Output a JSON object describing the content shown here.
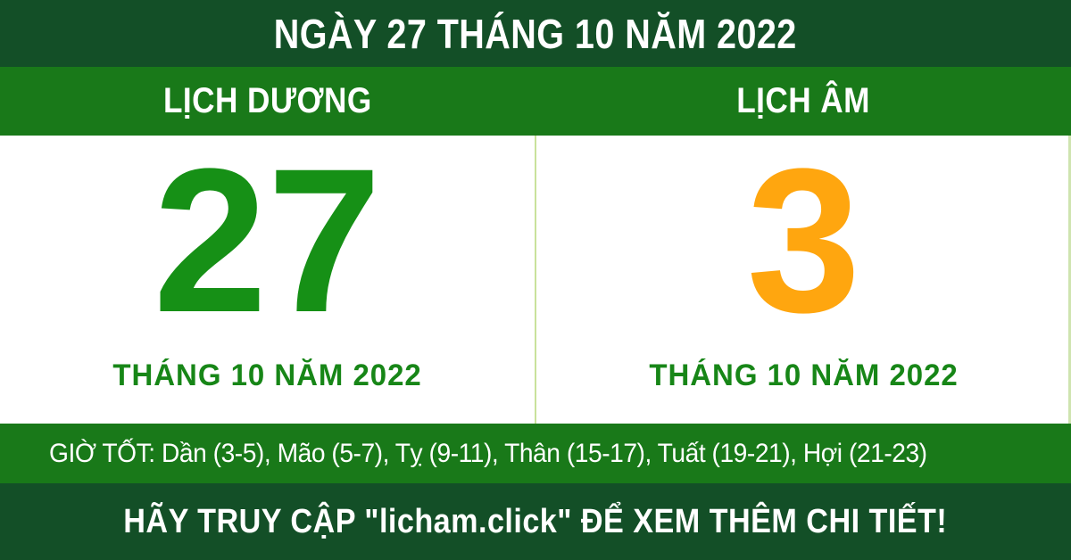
{
  "title_bar": {
    "text": "NGÀY 27 THÁNG 10 NĂM 2022"
  },
  "calendar": {
    "solar": {
      "header": "LỊCH DƯƠNG",
      "day": "27",
      "month_year": "THÁNG 10 NĂM 2022",
      "day_color": "#169016"
    },
    "lunar": {
      "header": "LỊCH ÂM",
      "day": "3",
      "month_year": "THÁNG 10 NĂM 2022",
      "day_color": "#FFA60F"
    }
  },
  "good_hours": {
    "text": "GIỜ TỐT: Dần (3-5), Mão (5-7), Tỵ (9-11), Thân (15-17), Tuất (19-21), Hợi (21-23)"
  },
  "footer": {
    "text": "HÃY TRUY CẬP \"licham.click\" ĐỂ XEM THÊM CHI TIẾT!"
  },
  "colors": {
    "dark_green_bar": "#134F27",
    "green_bar": "#197919",
    "solar_day_green": "#169016",
    "lunar_day_orange": "#FFA60F",
    "month_label_green": "#178617",
    "divider_light_green": "#C9E29B",
    "right_edge_light_green": "#CFE4B0",
    "text_white": "#FFFFFF"
  }
}
